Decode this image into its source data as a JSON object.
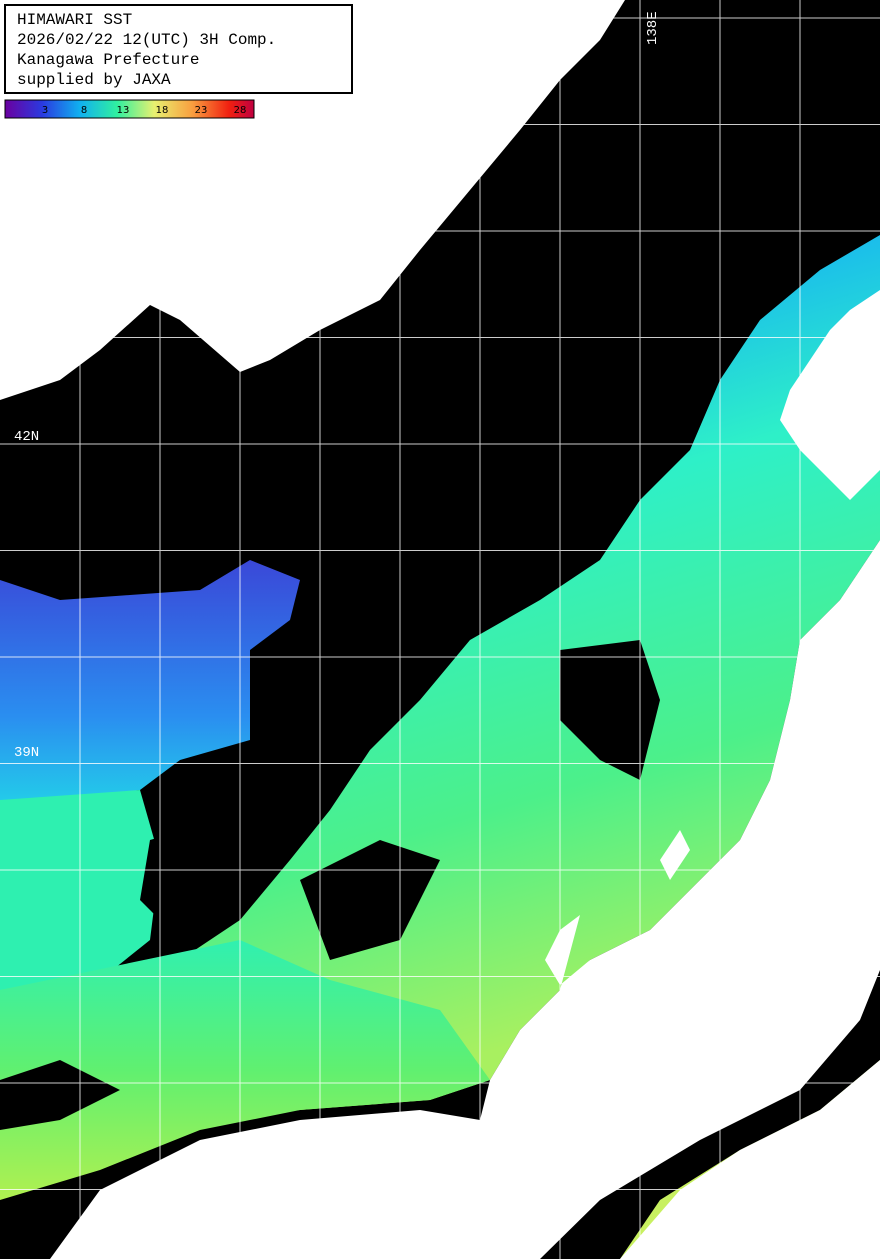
{
  "header": {
    "lines": [
      "HIMAWARI SST",
      "2026/02/22 12(UTC) 3H Comp.",
      "Kanagawa Prefecture",
      "supplied by JAXA"
    ]
  },
  "legend": {
    "ticks": [
      "3",
      "8",
      "13",
      "18",
      "23",
      "28"
    ]
  },
  "grid_labels": {
    "latitudes": [
      "42N",
      "39N"
    ],
    "longitudes": [
      "138E"
    ]
  }
}
